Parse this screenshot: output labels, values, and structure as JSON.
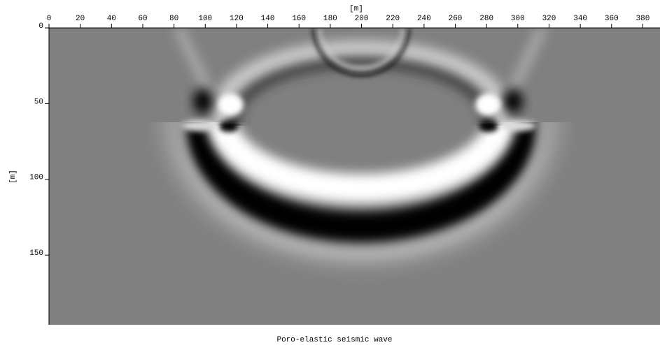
{
  "chart_data": {
    "type": "image",
    "title": "Poro-elastic seismic wave",
    "xlabel": "[m]",
    "ylabel": "[m]",
    "xlim": [
      0,
      391
    ],
    "ylim": [
      196,
      0
    ],
    "xticks": [
      0,
      20,
      40,
      60,
      80,
      100,
      120,
      140,
      160,
      180,
      200,
      220,
      240,
      260,
      280,
      300,
      320,
      340,
      360,
      380
    ],
    "yticks": [
      0,
      50,
      100,
      150
    ]
  }
}
